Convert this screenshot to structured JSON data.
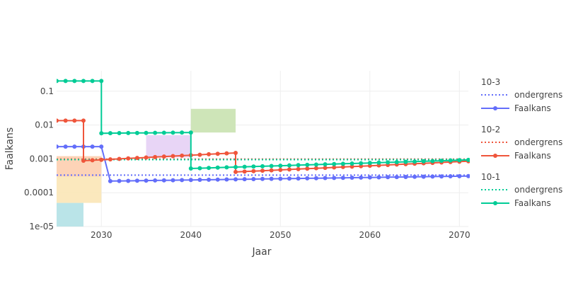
{
  "chart_data": {
    "type": "line",
    "xlabel": "Jaar",
    "ylabel": "Faalkans",
    "xlim": [
      2025,
      2071
    ],
    "ylim": [
      1e-05,
      0.4
    ],
    "yscale": "log",
    "x_ticks": [
      2030,
      2040,
      2050,
      2060,
      2070
    ],
    "y_ticks": [
      {
        "value": 0.1,
        "label": "0.1"
      },
      {
        "value": 0.01,
        "label": "0.01"
      },
      {
        "value": 0.001,
        "label": "0.001"
      },
      {
        "value": 0.0001,
        "label": "0.0001"
      },
      {
        "value": 1e-05,
        "label": "1e-05"
      }
    ],
    "grid": true,
    "legend_position": "right",
    "shaded_regions": [
      {
        "x": [
          2025,
          2028
        ],
        "y": [
          1e-05,
          5e-05
        ],
        "color": "#b3e1e6"
      },
      {
        "x": [
          2025,
          2030
        ],
        "y": [
          5e-05,
          0.0012
        ],
        "color": "#fbe5b6"
      },
      {
        "x": [
          2025,
          2030
        ],
        "y": [
          0.0003,
          0.0012
        ],
        "color": "#fdd0b6"
      },
      {
        "x": [
          2035,
          2040
        ],
        "y": [
          0.0011,
          0.005
        ],
        "color": "#e6d0f5"
      },
      {
        "x": [
          2040,
          2045
        ],
        "y": [
          0.006,
          0.03
        ],
        "color": "#c9e2b0"
      }
    ],
    "legend_groups": [
      {
        "title": "10-3",
        "ondergrens_label": "ondergrens",
        "faalkans_label": "Faalkans",
        "color": "#636efa"
      },
      {
        "title": "10-2",
        "ondergrens_label": "ondergrens",
        "faalkans_label": "Faalkans",
        "color": "#ef553b"
      },
      {
        "title": "10-1",
        "ondergrens_label": "ondergrens",
        "faalkans_label": "Faalkans",
        "color": "#00cc96"
      }
    ],
    "series": [
      {
        "name": "Faalkans",
        "group": "10-3",
        "color": "#636efa",
        "ondergrens": 0.00033,
        "segments": [
          {
            "x_start": 2025,
            "x_end": 2030,
            "y_start": 0.0023,
            "y_end": 0.0023
          },
          {
            "x_start": 2031,
            "x_end": 2071,
            "y_start": 0.00022,
            "y_end": 0.00031
          }
        ],
        "step_x": [
          2031
        ]
      },
      {
        "name": "Faalkans",
        "group": "10-2",
        "color": "#ef553b",
        "ondergrens": 0.00098,
        "segments": [
          {
            "x_start": 2025,
            "x_end": 2028,
            "y_start": 0.0135,
            "y_end": 0.0135
          },
          {
            "x_start": 2028,
            "x_end": 2045,
            "y_start": 0.00088,
            "y_end": 0.0015
          },
          {
            "x_start": 2045,
            "x_end": 2071,
            "y_start": 0.00041,
            "y_end": 0.00085
          }
        ],
        "step_x": [
          2028,
          2045
        ]
      },
      {
        "name": "Faalkans",
        "group": "10-1",
        "color": "#00cc96",
        "ondergrens": 0.00095,
        "segments": [
          {
            "x_start": 2025,
            "x_end": 2030,
            "y_start": 0.2,
            "y_end": 0.2
          },
          {
            "x_start": 2030,
            "x_end": 2040,
            "y_start": 0.0057,
            "y_end": 0.006
          },
          {
            "x_start": 2040,
            "x_end": 2071,
            "y_start": 0.00052,
            "y_end": 0.00093
          }
        ],
        "step_x": [
          2030,
          2040
        ]
      }
    ]
  }
}
